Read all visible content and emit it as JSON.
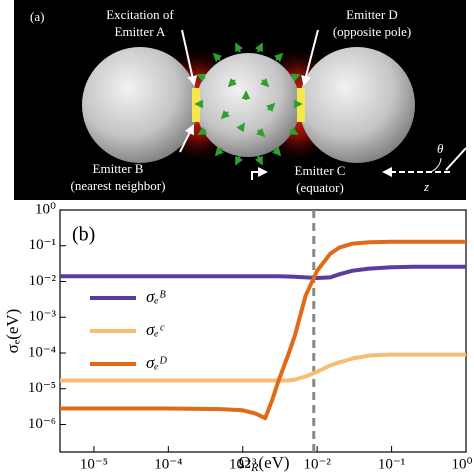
{
  "panel_a": {
    "label": "(a)",
    "excitation_line1": "Excitation of",
    "excitation_line2": "Emitter A",
    "emitter_d_line1": "Emitter D",
    "emitter_d_line2": "(opposite pole)",
    "emitter_b_line1": "Emitter B",
    "emitter_b_line2": "(nearest neighbor)",
    "emitter_c_line1": "Emitter C",
    "emitter_c_line2": "(equator)",
    "angle": "θ",
    "axis": "z"
  },
  "chart_data": {
    "type": "line",
    "label": "(b)",
    "ylabel": "σₑ(eV)",
    "xlabel": [
      "Ω",
      "R",
      "(eV)"
    ],
    "xscale": "log",
    "yscale": "log",
    "xlim": [
      3.5e-06,
      1
    ],
    "ylim": [
      1.7e-07,
      1
    ],
    "xticks": [
      {
        "value": 1e-05,
        "label": "10⁻⁵"
      },
      {
        "value": 0.0001,
        "label": "10⁻⁴"
      },
      {
        "value": 0.001,
        "label": "10⁻³"
      },
      {
        "value": 0.01,
        "label": "10⁻²"
      },
      {
        "value": 0.1,
        "label": "10⁻¹"
      },
      {
        "value": 1,
        "label": "10⁰"
      }
    ],
    "yticks": [
      {
        "value": 1,
        "label": "10⁰"
      },
      {
        "value": 0.1,
        "label": "10⁻¹"
      },
      {
        "value": 0.01,
        "label": "10⁻²"
      },
      {
        "value": 0.001,
        "label": "10⁻³"
      },
      {
        "value": 0.0001,
        "label": "10⁻⁴"
      },
      {
        "value": 1e-05,
        "label": "10⁻⁵"
      },
      {
        "value": 1e-06,
        "label": "10⁻⁶"
      }
    ],
    "vline": 0.009,
    "x": [
      3.5e-06,
      1e-05,
      0.0001,
      0.0005,
      0.001,
      0.0015,
      0.002,
      0.0025,
      0.003,
      0.004,
      0.005,
      0.007,
      0.01,
      0.015,
      0.02,
      0.03,
      0.05,
      0.1,
      0.2,
      0.5,
      1
    ],
    "series": [
      {
        "name": "σₑᴮ",
        "color": "#5a3c9c",
        "values": [
          0.014,
          0.014,
          0.014,
          0.014,
          0.014,
          0.014,
          0.014,
          0.014,
          0.014,
          0.0138,
          0.0135,
          0.013,
          0.0125,
          0.013,
          0.016,
          0.02,
          0.023,
          0.025,
          0.026,
          0.026,
          0.026
        ]
      },
      {
        "name": "σₑᶜ",
        "color": "#f8bd72",
        "values": [
          1.7e-05,
          1.7e-05,
          1.7e-05,
          1.7e-05,
          1.7e-05,
          1.7e-05,
          1.7e-05,
          1.7e-05,
          1.7e-05,
          1.7e-05,
          1.8e-05,
          2.2e-05,
          3e-05,
          4.5e-05,
          5.5e-05,
          7e-05,
          8.5e-05,
          9e-05,
          9e-05,
          9e-05,
          9e-05
        ]
      },
      {
        "name": "σₑᴰ",
        "color": "#e06a17",
        "values": [
          2.8e-06,
          2.8e-06,
          2.8e-06,
          2.7e-06,
          2.5e-06,
          2e-06,
          1.5e-06,
          5e-06,
          1.6e-05,
          8e-05,
          0.0003,
          0.004,
          0.02,
          0.06,
          0.09,
          0.115,
          0.125,
          0.13,
          0.13,
          0.13,
          0.13
        ]
      }
    ]
  }
}
